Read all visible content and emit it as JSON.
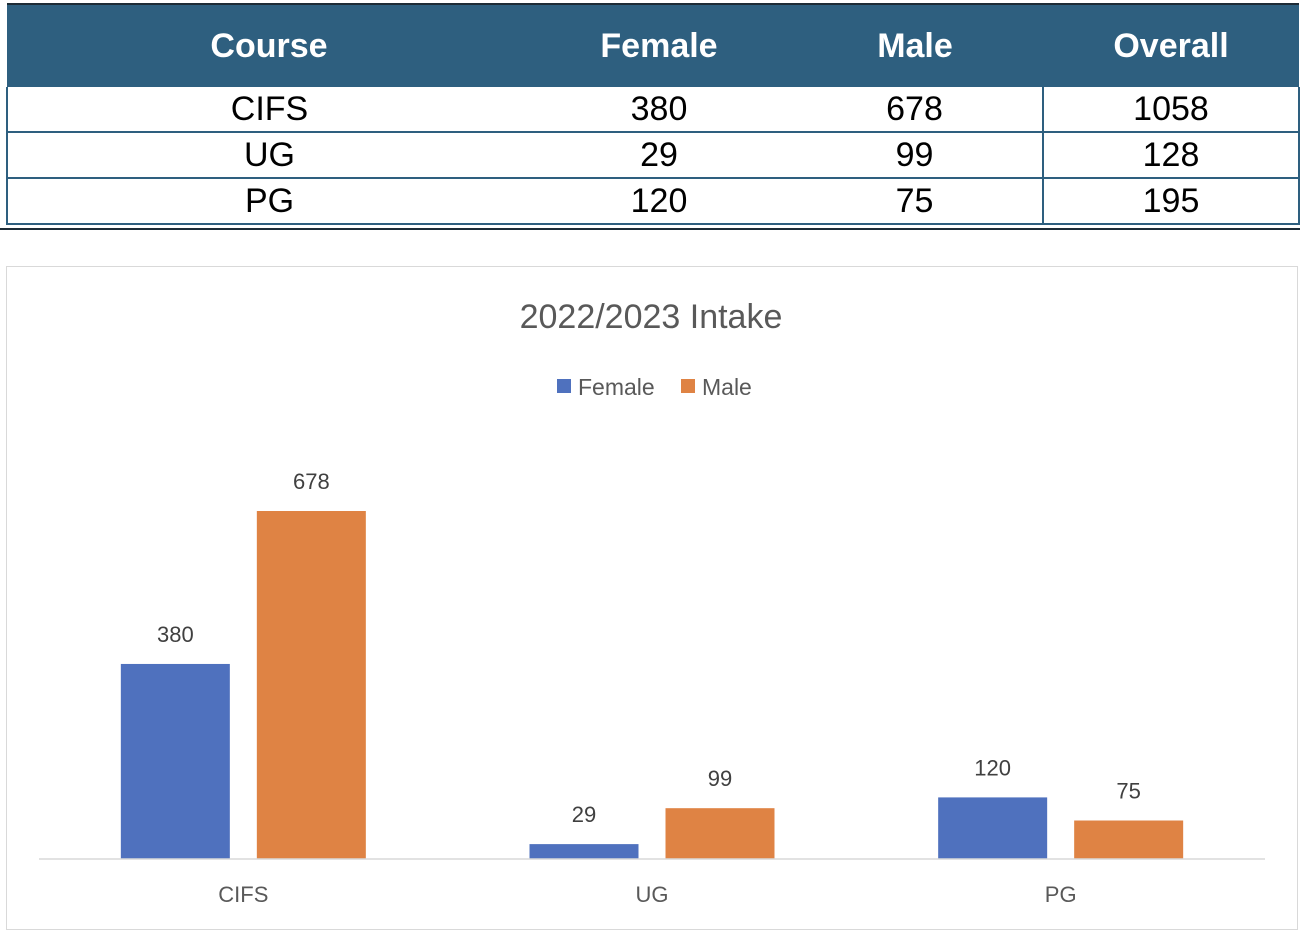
{
  "table": {
    "headers": [
      "Course",
      "Female",
      "Male",
      "Overall"
    ],
    "rows": [
      {
        "course": "CIFS",
        "female": "380",
        "male": "678",
        "overall": "1058"
      },
      {
        "course": "UG",
        "female": "29",
        "male": "99",
        "overall": "128"
      },
      {
        "course": "PG",
        "female": "120",
        "male": "75",
        "overall": "195"
      }
    ]
  },
  "colors": {
    "header_bg": "#2e5f7f",
    "female": "#4f71be",
    "male": "#df8344"
  },
  "chart_data": {
    "type": "bar",
    "title": "2022/2023 Intake",
    "categories": [
      "CIFS",
      "UG",
      "PG"
    ],
    "series": [
      {
        "name": "Female",
        "values": [
          380,
          29,
          120
        ],
        "color": "#4f71be"
      },
      {
        "name": "Male",
        "values": [
          678,
          99,
          75
        ],
        "color": "#df8344"
      }
    ],
    "xlabel": "",
    "ylabel": "",
    "ylim": [
      0,
      800
    ],
    "grid": false,
    "legend": "top-center",
    "data_labels": true
  }
}
